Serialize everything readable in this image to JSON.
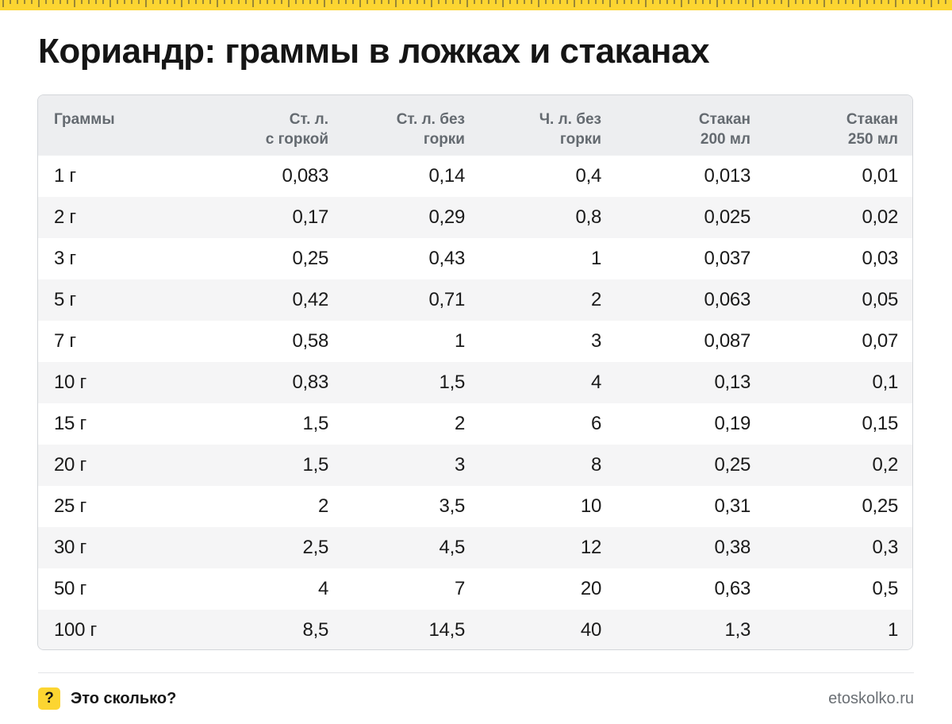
{
  "title": "Кориандр: граммы в ложках и стаканах",
  "colors": {
    "accent": "#fcd531",
    "header_bg": "#edeef0",
    "stripe_bg": "#f5f5f6",
    "border": "#d3d6da"
  },
  "table": {
    "headers": [
      {
        "line1": "Граммы",
        "line2": ""
      },
      {
        "line1": "Ст. л.",
        "line2": "с горкой"
      },
      {
        "line1": "Ст. л. без",
        "line2": "горки"
      },
      {
        "line1": "Ч. л. без",
        "line2": "горки"
      },
      {
        "line1": "Стакан",
        "line2": "200 мл"
      },
      {
        "line1": "Стакан",
        "line2": "250 мл"
      }
    ],
    "rows": [
      [
        "1 г",
        "0,083",
        "0,14",
        "0,4",
        "0,013",
        "0,01"
      ],
      [
        "2 г",
        "0,17",
        "0,29",
        "0,8",
        "0,025",
        "0,02"
      ],
      [
        "3 г",
        "0,25",
        "0,43",
        "1",
        "0,037",
        "0,03"
      ],
      [
        "5 г",
        "0,42",
        "0,71",
        "2",
        "0,063",
        "0,05"
      ],
      [
        "7 г",
        "0,58",
        "1",
        "3",
        "0,087",
        "0,07"
      ],
      [
        "10 г",
        "0,83",
        "1,5",
        "4",
        "0,13",
        "0,1"
      ],
      [
        "15 г",
        "1,5",
        "2",
        "6",
        "0,19",
        "0,15"
      ],
      [
        "20 г",
        "1,5",
        "3",
        "8",
        "0,25",
        "0,2"
      ],
      [
        "25 г",
        "2",
        "3,5",
        "10",
        "0,31",
        "0,25"
      ],
      [
        "30 г",
        "2,5",
        "4,5",
        "12",
        "0,38",
        "0,3"
      ],
      [
        "50 г",
        "4",
        "7",
        "20",
        "0,63",
        "0,5"
      ],
      [
        "100 г",
        "8,5",
        "14,5",
        "40",
        "1,3",
        "1"
      ]
    ]
  },
  "footer": {
    "logo_glyph": "?",
    "brand": "Это сколько?",
    "site": "etoskolko.ru"
  }
}
